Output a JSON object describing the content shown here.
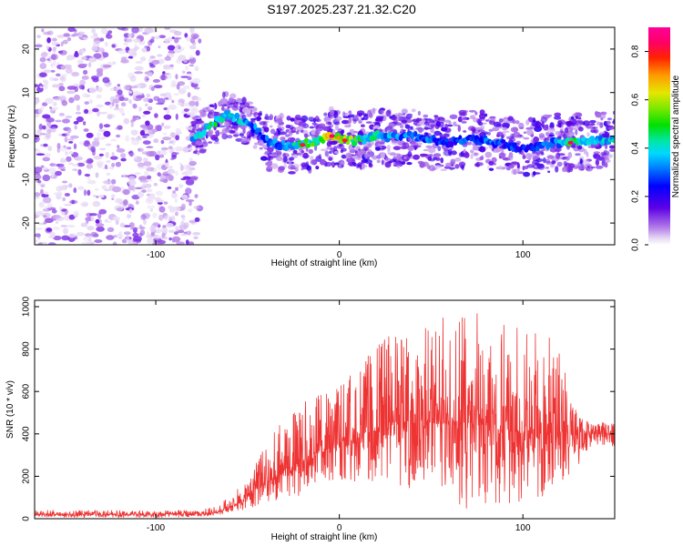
{
  "page": {
    "title": "S197.2025.237.21.32.C20"
  },
  "chart_data": [
    {
      "type": "heatmap",
      "title": "S197.2025.237.21.32.C20",
      "xlabel": "Height of straight line (km)",
      "ylabel": "Frequency (Hz)",
      "xlim": [
        -166,
        150
      ],
      "ylim": [
        -25,
        25
      ],
      "x_ticks": [
        -100,
        0,
        100
      ],
      "x_tick_labels": [
        "-100",
        "0",
        "100"
      ],
      "y_ticks": [
        -20,
        -10,
        0,
        10,
        20
      ],
      "y_tick_labels": [
        "-20",
        "-10",
        "0",
        "10",
        "20"
      ],
      "colorbar": {
        "label": "Normalized spectral amplitude",
        "range": [
          0,
          0.9
        ],
        "ticks": [
          0.0,
          0.2,
          0.4,
          0.6,
          0.8
        ],
        "tick_labels": [
          "0.0",
          "0.2",
          "0.4",
          "0.6",
          "0.8"
        ]
      },
      "noise_region": {
        "x_range": [
          -166,
          -76
        ],
        "f_range": [
          -25,
          25
        ],
        "max_amplitude": 0.15
      },
      "signal_ridge": [
        {
          "x": -80,
          "f": -1,
          "amp": 0.35
        },
        {
          "x": -74,
          "f": 1,
          "amp": 0.4
        },
        {
          "x": -68,
          "f": 3,
          "amp": 0.45
        },
        {
          "x": -62,
          "f": 5,
          "amp": 0.4
        },
        {
          "x": -56,
          "f": 4,
          "amp": 0.42
        },
        {
          "x": -50,
          "f": 3,
          "amp": 0.35
        },
        {
          "x": -44,
          "f": 1,
          "amp": 0.3
        },
        {
          "x": -38,
          "f": -1.5,
          "amp": 0.3
        },
        {
          "x": -30,
          "f": -2,
          "amp": 0.35
        },
        {
          "x": -20,
          "f": -2,
          "amp": 0.45
        },
        {
          "x": -12,
          "f": -1,
          "amp": 0.5
        },
        {
          "x": -4,
          "f": 0,
          "amp": 0.7
        },
        {
          "x": 4,
          "f": -1,
          "amp": 0.6
        },
        {
          "x": 12,
          "f": -1,
          "amp": 0.45
        },
        {
          "x": 20,
          "f": 0,
          "amp": 0.4
        },
        {
          "x": 30,
          "f": -0.5,
          "amp": 0.35
        },
        {
          "x": 40,
          "f": 0,
          "amp": 0.3
        },
        {
          "x": 50,
          "f": -1,
          "amp": 0.3
        },
        {
          "x": 60,
          "f": -1.5,
          "amp": 0.25
        },
        {
          "x": 70,
          "f": -0.5,
          "amp": 0.3
        },
        {
          "x": 80,
          "f": -1,
          "amp": 0.3
        },
        {
          "x": 90,
          "f": -2,
          "amp": 0.28
        },
        {
          "x": 100,
          "f": -3,
          "amp": 0.25
        },
        {
          "x": 110,
          "f": -2,
          "amp": 0.3
        },
        {
          "x": 118,
          "f": -1.5,
          "amp": 0.3
        },
        {
          "x": 126,
          "f": -1.5,
          "amp": 0.5
        },
        {
          "x": 134,
          "f": -1,
          "amp": 0.38
        },
        {
          "x": 142,
          "f": -1,
          "amp": 0.38
        },
        {
          "x": 150,
          "f": -1,
          "amp": 0.38
        }
      ]
    },
    {
      "type": "line",
      "xlabel": "Height of straight line (km)",
      "ylabel": "SNR (10 * v/v)",
      "xlim": [
        -166,
        150
      ],
      "ylim": [
        0,
        1030
      ],
      "x_ticks": [
        -100,
        0,
        100
      ],
      "x_tick_labels": [
        "-100",
        "0",
        "100"
      ],
      "y_ticks": [
        0,
        200,
        400,
        600,
        800,
        1000
      ],
      "y_tick_labels": [
        "0",
        "200",
        "400",
        "600",
        "800",
        "1000"
      ],
      "color": "#ee3333",
      "series": [
        {
          "name": "SNR",
          "x": [
            -166,
            -140,
            -110,
            -90,
            -75,
            -66,
            -56,
            -48,
            -40,
            -34,
            -24,
            -18,
            -10,
            0,
            10,
            20,
            30,
            40,
            50,
            60,
            70,
            80,
            90,
            100,
            110,
            120,
            130,
            140,
            150
          ],
          "mean": [
            20,
            20,
            20,
            22,
            24,
            30,
            70,
            120,
            170,
            200,
            240,
            280,
            320,
            360,
            380,
            420,
            450,
            460,
            450,
            440,
            460,
            440,
            420,
            400,
            400,
            410,
            410,
            410,
            400
          ],
          "low": [
            5,
            5,
            5,
            5,
            10,
            15,
            30,
            50,
            60,
            80,
            100,
            120,
            150,
            180,
            160,
            180,
            170,
            120,
            100,
            60,
            40,
            50,
            60,
            80,
            80,
            100,
            250,
            350,
            340
          ],
          "high": [
            45,
            40,
            40,
            40,
            45,
            60,
            140,
            220,
            360,
            470,
            520,
            650,
            600,
            650,
            720,
            820,
            900,
            880,
            920,
            980,
            1020,
            960,
            960,
            920,
            880,
            820,
            480,
            460,
            450
          ]
        }
      ]
    }
  ]
}
